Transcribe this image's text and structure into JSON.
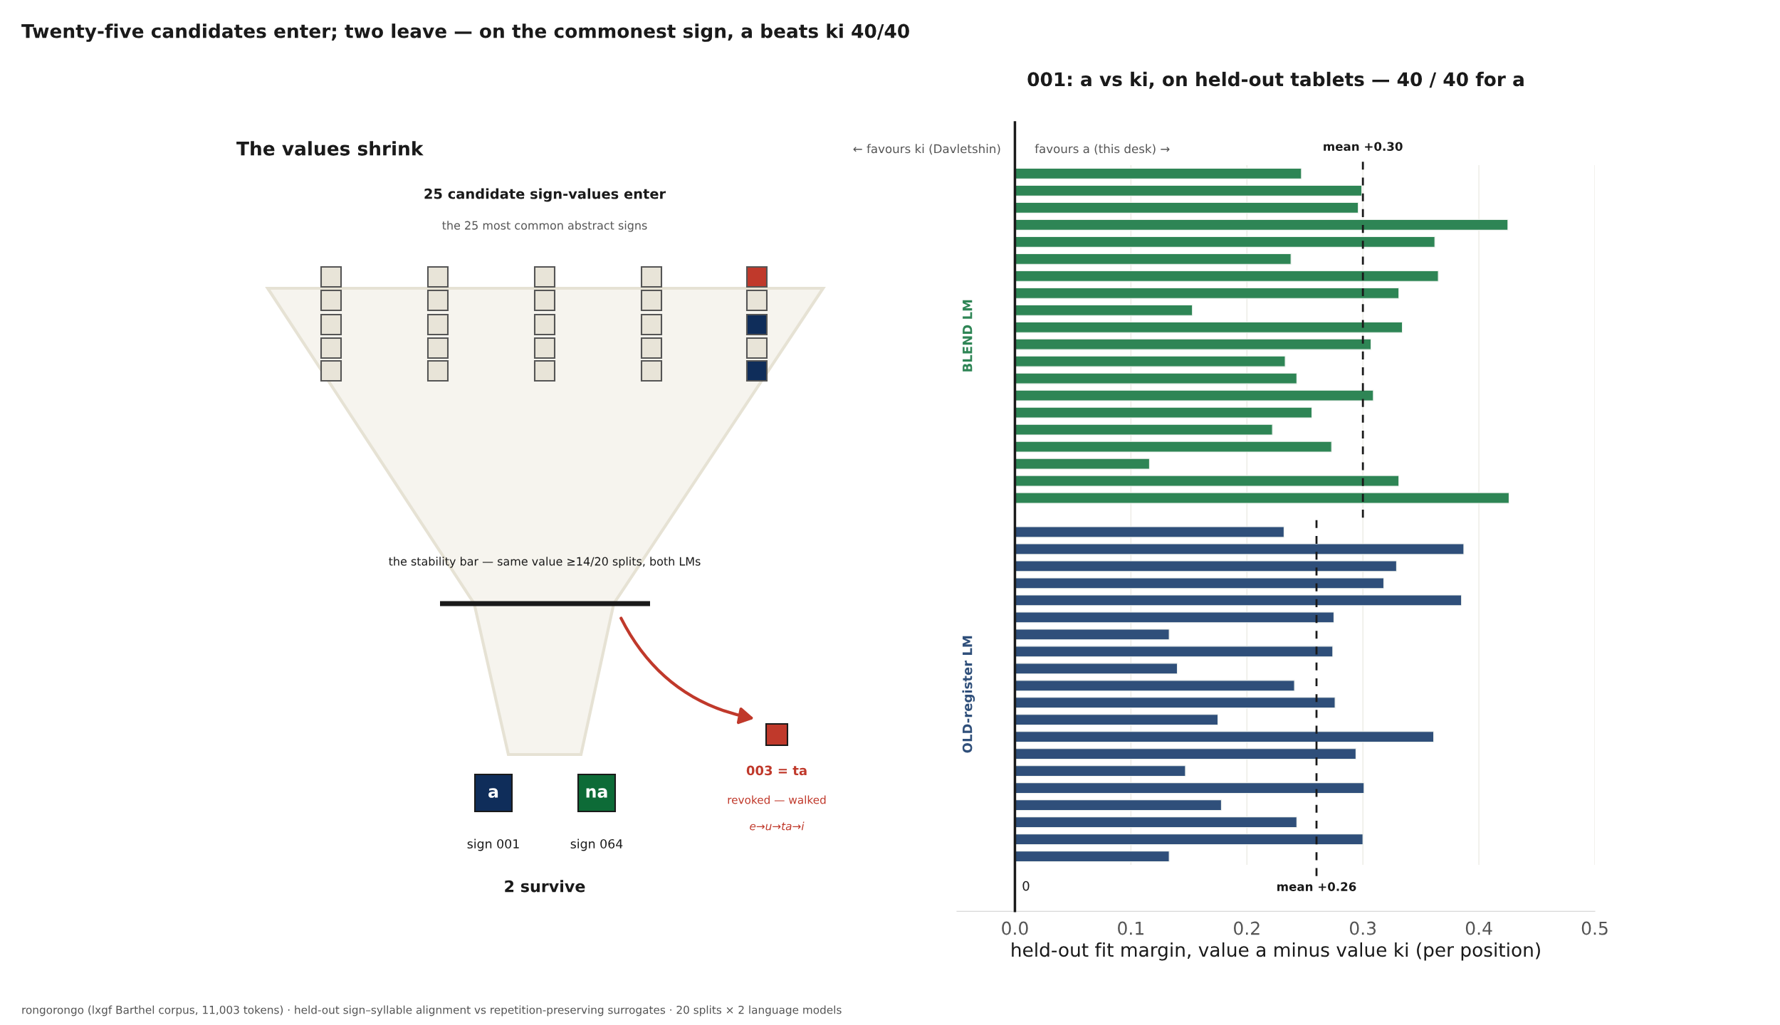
{
  "chart_data": [
    {
      "type": "other",
      "title": "Twenty-five candidates enter; two leave — on the commonest sign, a beats ki 40/40",
      "subtitle": "The values shrink",
      "annotations": [
        "25 candidate sign-values enter",
        "the 25 most common abstract signs",
        "the stability bar — same value ≥14/20 splits, both LMs",
        "a",
        "na",
        "sign 001",
        "sign 064",
        "2 survive",
        "003 = ta",
        "revoked — walked",
        "e→u→ta→i",
        "rongorongo (lxgf Barthel corpus, 11,003 tokens) · held-out sign–syllable alignment vs repetition-preserving surrogates · 20 splits × 2 language models"
      ]
    },
    {
      "type": "bar",
      "orientation": "horizontal",
      "title": "001: a vs ki, on held-out tablets — 40 / 40 for a",
      "xlabel": "held-out fit margin, value a minus value ki (per position)",
      "categories": [
        null,
        null,
        null,
        null,
        null,
        null,
        null,
        null,
        null,
        null,
        null,
        null,
        null,
        null,
        null,
        null,
        null,
        null,
        null,
        null,
        null,
        null,
        null,
        null,
        null,
        null,
        null,
        null,
        null,
        null,
        null,
        null,
        null,
        null,
        null,
        null,
        null,
        null,
        null,
        null,
        null
      ],
      "series": [
        {
          "name": "BLEND LM",
          "color": "#2e8555",
          "values": [
            0.247,
            0.299,
            0.296,
            0.425,
            0.362,
            0.238,
            0.365,
            0.331,
            0.153,
            0.334,
            0.307,
            0.233,
            0.243,
            0.309,
            0.256,
            0.222,
            0.273,
            0.116,
            0.331,
            0.426,
            null,
            null,
            null,
            null,
            null,
            null,
            null,
            null,
            null,
            null,
            null,
            null,
            null,
            null,
            null,
            null,
            null,
            null,
            null,
            null,
            null
          ]
        },
        {
          "name": "OLD-register LM",
          "color": "#2f4f7a",
          "values": [
            null,
            null,
            null,
            null,
            null,
            null,
            null,
            null,
            null,
            null,
            null,
            null,
            null,
            null,
            null,
            null,
            null,
            null,
            null,
            null,
            null,
            0.232,
            0.387,
            0.329,
            0.318,
            0.385,
            0.275,
            0.133,
            0.274,
            0.14,
            0.241,
            0.276,
            0.175,
            0.361,
            0.294,
            0.147,
            0.301,
            0.178,
            0.243,
            0.3,
            0.133
          ]
        }
      ],
      "xlim": [
        -0.05,
        0.5
      ],
      "xticks": [
        {
          "value": 0,
          "label": "0.0"
        },
        0.1,
        0.2,
        0.3,
        0.4,
        0.5
      ],
      "ref_lines": [
        {
          "axis": "x",
          "value": 0.3,
          "label": "mean +0.30",
          "color": "#1a1a1a",
          "line_style": "dashed"
        },
        {
          "axis": "x",
          "value": 0.26,
          "label": "mean +0.26",
          "color": "#1a1a1a",
          "line_style": "dashed"
        },
        {
          "axis": "x",
          "value": 0,
          "label": "0",
          "color": "#1a1a1a",
          "line_style": "solid"
        }
      ],
      "annotations": [
        "← favours ki (Davletshin)",
        "favours a (this desk) →"
      ],
      "grid": "x",
      "legend": false
    }
  ]
}
